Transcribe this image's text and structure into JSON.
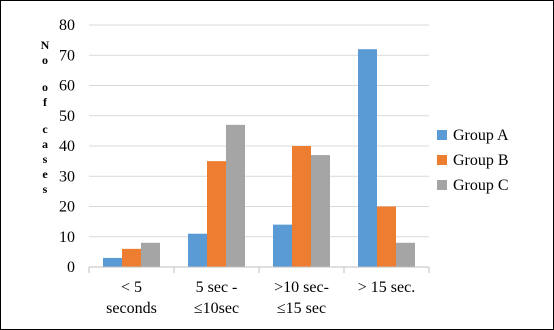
{
  "chart_data": {
    "type": "bar",
    "categories": [
      [
        "< 5",
        "seconds"
      ],
      [
        "5 sec -",
        "≤10sec"
      ],
      [
        ">10 sec-",
        "≤15 sec"
      ],
      [
        "> 15 sec."
      ]
    ],
    "series": [
      {
        "name": "Group A",
        "color": "#5B9BD5",
        "values": [
          3,
          11,
          14,
          72
        ]
      },
      {
        "name": "Group B",
        "color": "#ED7D31",
        "values": [
          6,
          35,
          40,
          20
        ]
      },
      {
        "name": "Group C",
        "color": "#A5A5A5",
        "values": [
          8,
          47,
          37,
          8
        ]
      }
    ],
    "ylabel": "No of cases",
    "ylim": [
      0,
      80
    ],
    "yticks": [
      0,
      10,
      20,
      30,
      40,
      50,
      60,
      70,
      80
    ],
    "grid": true,
    "legend": "right"
  }
}
